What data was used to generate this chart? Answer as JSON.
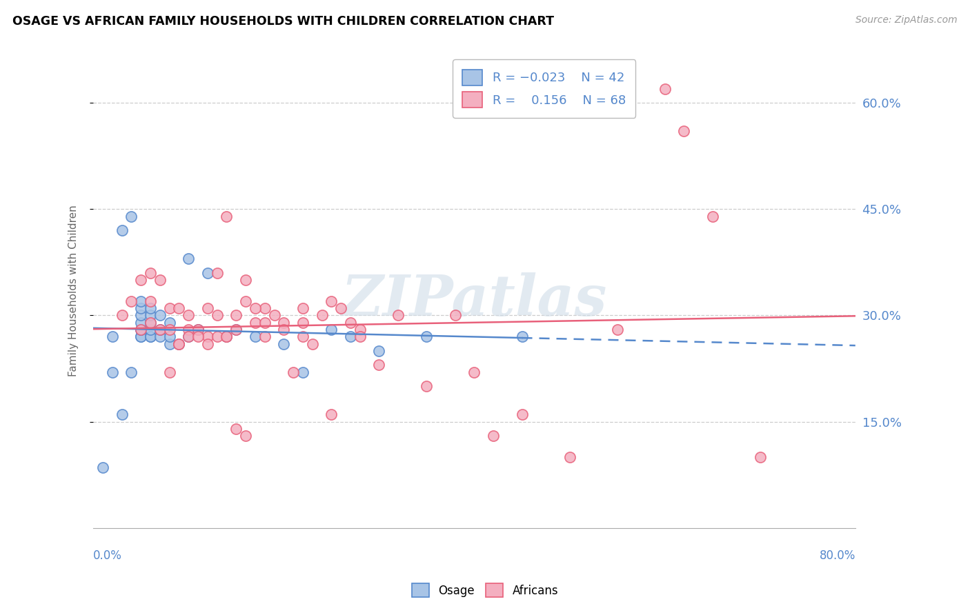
{
  "title": "OSAGE VS AFRICAN FAMILY HOUSEHOLDS WITH CHILDREN CORRELATION CHART",
  "source": "Source: ZipAtlas.com",
  "ylabel": "Family Households with Children",
  "xlim": [
    0.0,
    80.0
  ],
  "ylim": [
    0.0,
    67.0
  ],
  "yticks": [
    15.0,
    30.0,
    45.0,
    60.0
  ],
  "osage_color": "#a8c4e6",
  "african_color": "#f4afc0",
  "trendline_osage_color": "#5588cc",
  "trendline_african_color": "#e8607a",
  "watermark": "ZIPatlas",
  "osage_x": [
    1,
    2,
    2,
    3,
    4,
    4,
    5,
    5,
    5,
    5,
    5,
    5,
    5,
    5,
    6,
    6,
    6,
    6,
    6,
    6,
    7,
    7,
    7,
    8,
    8,
    8,
    9,
    10,
    10,
    11,
    12,
    14,
    15,
    17,
    20,
    22,
    25,
    27,
    30,
    35,
    45,
    3
  ],
  "osage_y": [
    8.5,
    22,
    27,
    42,
    22,
    44,
    27,
    27,
    28,
    28,
    29,
    30,
    31,
    32,
    27,
    27,
    28,
    29,
    30,
    31,
    27,
    28,
    30,
    26,
    27,
    29,
    26,
    27,
    38,
    28,
    36,
    27,
    28,
    27,
    26,
    22,
    28,
    27,
    25,
    27,
    27,
    16
  ],
  "african_x": [
    3,
    4,
    5,
    5,
    6,
    6,
    6,
    7,
    7,
    8,
    8,
    9,
    9,
    10,
    10,
    11,
    12,
    12,
    13,
    13,
    14,
    14,
    15,
    15,
    16,
    16,
    17,
    18,
    18,
    19,
    20,
    21,
    22,
    22,
    23,
    24,
    25,
    26,
    27,
    28,
    30,
    32,
    35,
    38,
    40,
    42,
    45,
    50,
    55,
    60,
    62,
    65,
    70,
    8,
    9,
    10,
    11,
    12,
    13,
    14,
    15,
    16,
    17,
    18,
    20,
    22,
    25,
    28
  ],
  "african_y": [
    30,
    32,
    28,
    35,
    29,
    32,
    36,
    28,
    35,
    28,
    31,
    26,
    31,
    28,
    30,
    28,
    27,
    31,
    30,
    36,
    27,
    44,
    28,
    30,
    32,
    35,
    29,
    27,
    31,
    30,
    29,
    22,
    27,
    31,
    26,
    30,
    32,
    31,
    29,
    28,
    23,
    30,
    20,
    30,
    22,
    13,
    16,
    10,
    28,
    62,
    56,
    44,
    10,
    22,
    26,
    27,
    27,
    26,
    27,
    27,
    14,
    13,
    31,
    29,
    28,
    29,
    16,
    27
  ],
  "osage_solid_end_x": 45,
  "trendline_start_x": 0,
  "trendline_end_x": 80
}
